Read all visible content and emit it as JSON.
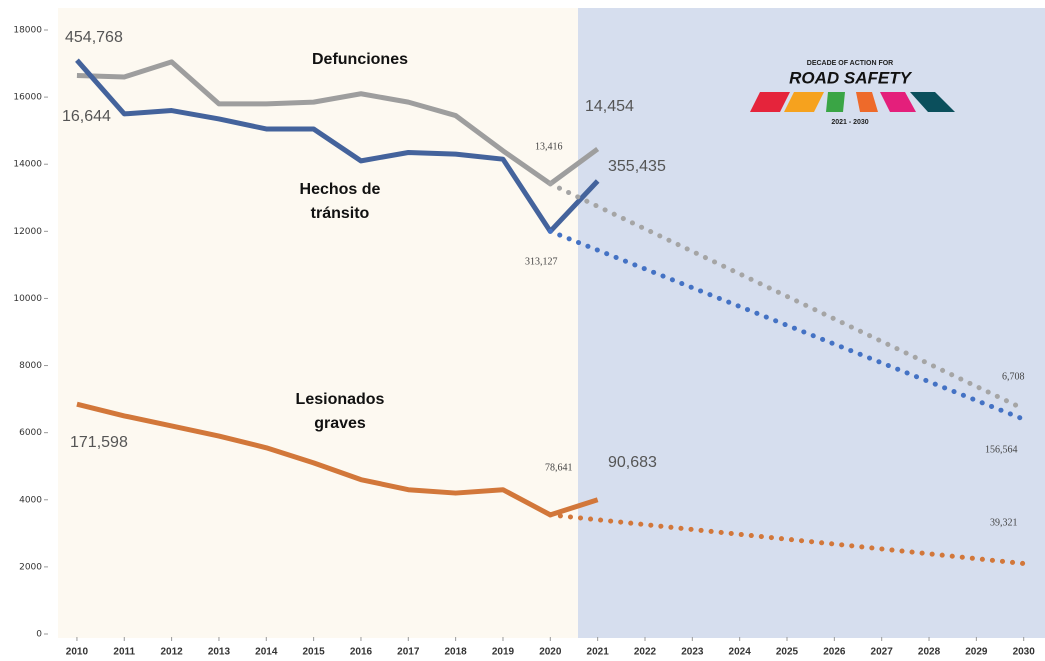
{
  "chart_data": {
    "type": "line",
    "x": [
      2010,
      2011,
      2012,
      2013,
      2014,
      2015,
      2016,
      2017,
      2018,
      2019,
      2020,
      2021,
      2022,
      2023,
      2024,
      2025,
      2026,
      2027,
      2028,
      2029,
      2030
    ],
    "xlim": [
      2009.6,
      2030.45
    ],
    "xticks": [
      2010,
      2011,
      2012,
      2013,
      2014,
      2015,
      2016,
      2017,
      2018,
      2019,
      2020,
      2021,
      2022,
      2023,
      2024,
      2025,
      2026,
      2027,
      2028,
      2029,
      2030
    ],
    "ylim": [
      0,
      18000
    ],
    "yticks": [
      0,
      2000,
      4000,
      6000,
      8000,
      10000,
      12000,
      14000,
      16000,
      18000
    ],
    "series": [
      {
        "name": "Defunciones",
        "color": "#9e9e9e",
        "dotted": false,
        "values": [
          16644,
          16600,
          17050,
          15800,
          15800,
          15850,
          16100,
          15850,
          15450,
          14400,
          13416,
          14454,
          null,
          null,
          null,
          null,
          null,
          null,
          null,
          null,
          null
        ],
        "value_labels": [
          "16,644",
          null,
          null,
          null,
          null,
          null,
          null,
          null,
          null,
          null,
          "13,416",
          "14,454",
          null,
          null,
          null,
          null,
          null,
          null,
          null,
          null,
          null
        ]
      },
      {
        "name": "Hechos de tránsito",
        "color": "#44639c",
        "dotted": false,
        "values": [
          17100,
          15500,
          15600,
          15350,
          15050,
          15050,
          14100,
          14350,
          14300,
          14150,
          12000,
          13500,
          null,
          null,
          null,
          null,
          null,
          null,
          null,
          null,
          null
        ]
      },
      {
        "name": "Lesionados graves",
        "color": "#d2773a",
        "dotted": false,
        "values": [
          6850,
          6500,
          6200,
          5900,
          5550,
          5100,
          4600,
          4300,
          4200,
          4300,
          3550,
          4000,
          null,
          null,
          null,
          null,
          null,
          null,
          null,
          null,
          null
        ]
      },
      {
        "color": "#a5a5a5",
        "dotted": true,
        "values": [
          null,
          null,
          null,
          null,
          null,
          null,
          null,
          null,
          null,
          null,
          13416,
          12745,
          12074,
          11404,
          10733,
          10062,
          9391,
          8720,
          8050,
          7379,
          6708
        ],
        "value_labels": [
          null,
          null,
          null,
          null,
          null,
          null,
          null,
          null,
          null,
          null,
          null,
          null,
          null,
          null,
          null,
          null,
          null,
          null,
          null,
          null,
          "6,708"
        ]
      },
      {
        "color": "#4472c4",
        "dotted": true,
        "values": [
          null,
          null,
          null,
          null,
          null,
          null,
          null,
          null,
          null,
          null,
          12000,
          11440,
          10880,
          10320,
          9760,
          9200,
          8640,
          8080,
          7520,
          6960,
          6400
        ]
      },
      {
        "color": "#d2773a",
        "dotted": true,
        "values": [
          null,
          null,
          null,
          null,
          null,
          null,
          null,
          null,
          null,
          null,
          3550,
          3405,
          3260,
          3115,
          2970,
          2825,
          2680,
          2535,
          2390,
          2245,
          2100
        ]
      }
    ],
    "annotations": [
      "454,768",
      "313,127",
      "355,435",
      "156,564",
      "171,598",
      "78,641",
      "90,683",
      "39,321"
    ],
    "logo": {
      "top": "DECADE OF ACTION FOR",
      "title": "ROAD SAFETY",
      "years": "2021 - 2030"
    }
  }
}
